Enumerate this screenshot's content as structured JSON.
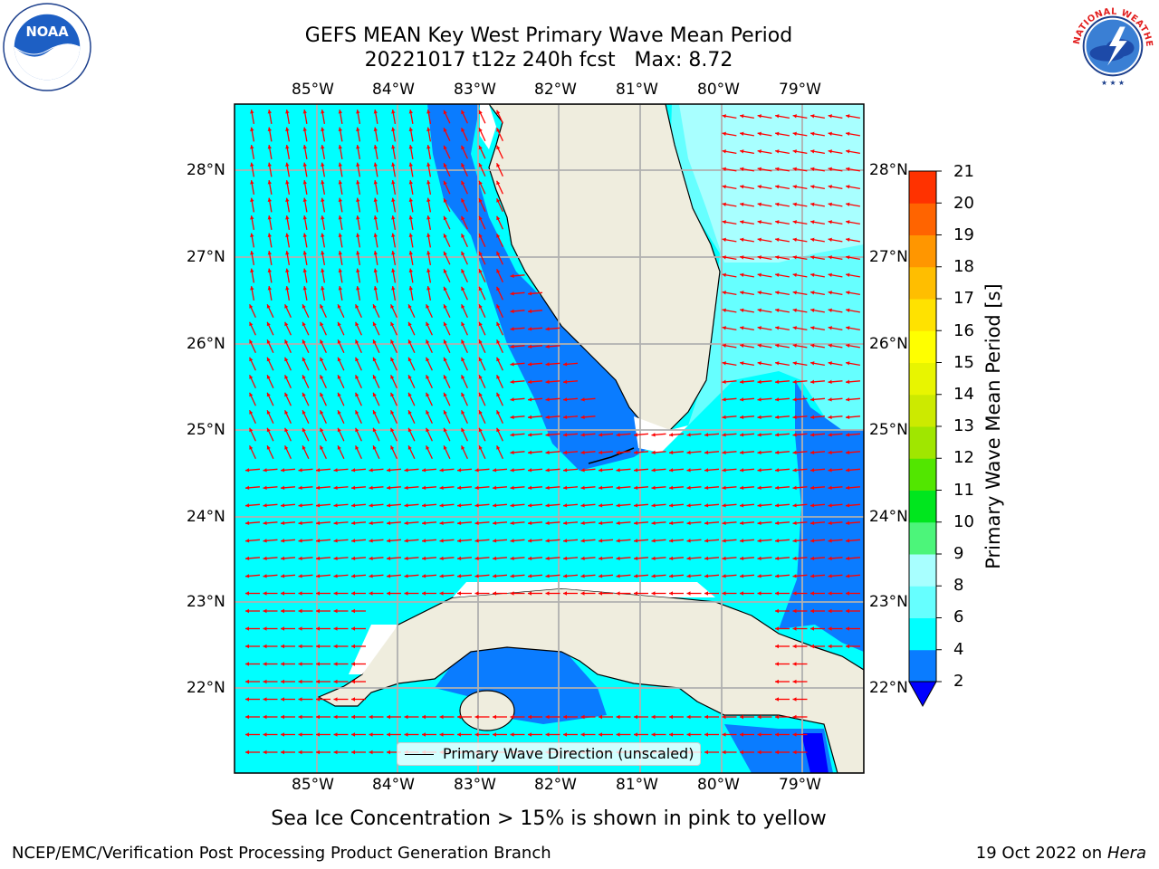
{
  "header": {
    "title_line1": "GEFS MEAN Key West Primary Wave Mean Period",
    "title_line2": "20221017 t12z 240h fcst   Max: 8.72"
  },
  "logos": {
    "left": {
      "icon": "noaa-logo",
      "text": "NOAA"
    },
    "right": {
      "icon": "national-weather-service-logo",
      "text": "NATIONAL WEATHER SERVICE"
    }
  },
  "map": {
    "lon_labels": [
      "85°W",
      "84°W",
      "83°W",
      "82°W",
      "81°W",
      "80°W",
      "79°W"
    ],
    "lat_labels": [
      "28°N",
      "27°N",
      "26°N",
      "25°N",
      "24°N",
      "23°N",
      "22°N"
    ],
    "colors": {
      "land": "#efedde",
      "band_2_4": "#0a7cff",
      "band_4_6": "#00ffff",
      "band_6_8": "#66ffff",
      "band_8_9": "#a8ffff",
      "below_2": "#0000ff",
      "arrows": "#ff0000",
      "gridlines": "#b0b0b0"
    },
    "legend": {
      "label": "Primary Wave Direction (unscaled)"
    }
  },
  "colorbar": {
    "title": "Primary Wave Mean Period [s]",
    "levels": [
      "2",
      "4",
      "6",
      "8",
      "9",
      "10",
      "11",
      "12",
      "13",
      "14",
      "15",
      "16",
      "17",
      "18",
      "19",
      "20",
      "21"
    ],
    "colors": [
      "#0a7cff",
      "#00ffff",
      "#66ffff",
      "#a8ffff",
      "#4cf57a",
      "#00e61e",
      "#52e600",
      "#a0e600",
      "#ccea00",
      "#e8f500",
      "#ffff00",
      "#ffe200",
      "#ffbe00",
      "#ff9600",
      "#ff6400",
      "#ff3200"
    ],
    "under_color": "#0000ff"
  },
  "footer": {
    "note": "Sea Ice Concentration > 15% is shown in pink to yellow",
    "credit": "NCEP/EMC/Verification Post Processing Product Generation Branch",
    "date_prefix": "19 Oct 2022 on ",
    "machine": "Hera"
  }
}
